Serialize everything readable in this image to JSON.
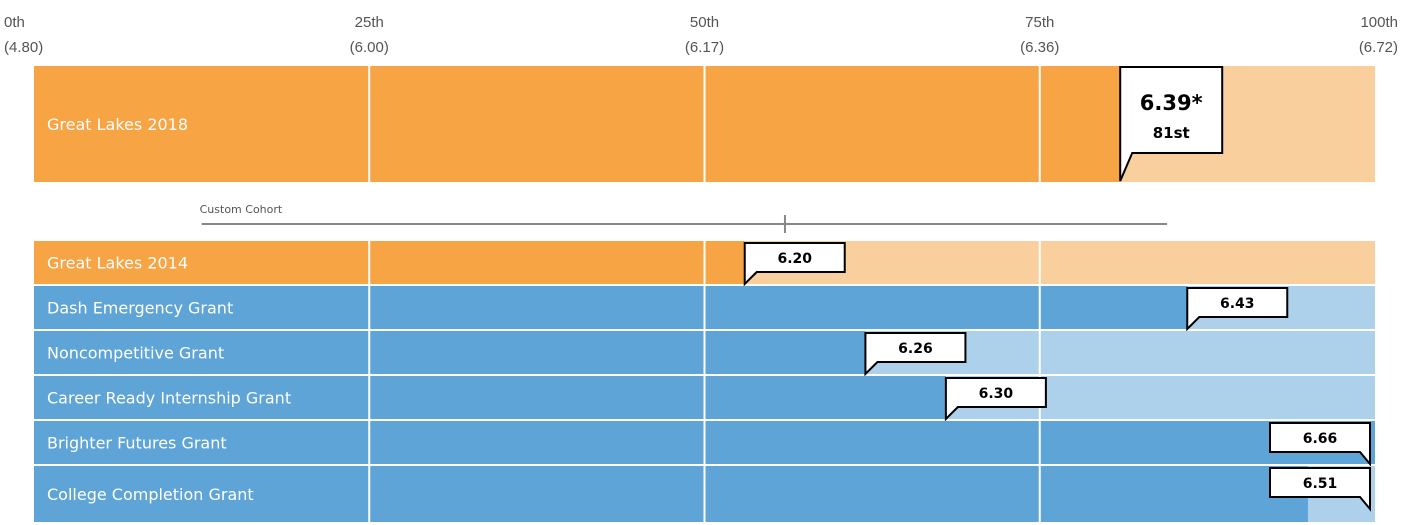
{
  "chart_data": {
    "type": "bar",
    "orientation": "horizontal",
    "axis": {
      "ticks": [
        {
          "percentile": 0,
          "label": "0th",
          "value_label": "(4.80)"
        },
        {
          "percentile": 25,
          "label": "25th",
          "value_label": "(6.00)"
        },
        {
          "percentile": 50,
          "label": "50th",
          "value_label": "(6.17)"
        },
        {
          "percentile": 75,
          "label": "75th",
          "value_label": "(6.36)"
        },
        {
          "percentile": 100,
          "label": "100th",
          "value_label": "(6.72)"
        }
      ],
      "xlim": [
        0,
        100
      ]
    },
    "featured": {
      "name": "Great Lakes 2018",
      "value": 6.39,
      "value_label": "6.39*",
      "percentile": 81,
      "percentile_label": "81st",
      "color": "#f7a444",
      "remainder_color": "#f9cf9d"
    },
    "cohort": {
      "label": "Custom Cohort",
      "range": [
        12.5,
        84.5
      ],
      "marker": 56
    },
    "series": [
      {
        "name": "Great Lakes 2014",
        "value": 6.2,
        "value_label": "6.20",
        "percentile": 53,
        "color": "#f7a444",
        "remainder_color": "#f9cf9d"
      },
      {
        "name": "Dash Emergency Grant",
        "value": 6.43,
        "value_label": "6.43",
        "percentile": 86,
        "color": "#5fa4d6",
        "remainder_color": "#add1ea"
      },
      {
        "name": "Noncompetitive Grant",
        "value": 6.26,
        "value_label": "6.26",
        "percentile": 62,
        "color": "#5fa4d6",
        "remainder_color": "#add1ea"
      },
      {
        "name": "Career Ready Internship Grant",
        "value": 6.3,
        "value_label": "6.30",
        "percentile": 68,
        "color": "#5fa4d6",
        "remainder_color": "#add1ea"
      },
      {
        "name": "Brighter Futures Grant",
        "value": 6.66,
        "value_label": "6.66",
        "percentile": 100,
        "color": "#5fa4d6",
        "remainder_color": "#add1ea"
      },
      {
        "name": "College Completion Grant",
        "value": 6.51,
        "value_label": "6.51",
        "percentile": 95,
        "color": "#5fa4d6",
        "remainder_color": "#add1ea"
      }
    ]
  }
}
